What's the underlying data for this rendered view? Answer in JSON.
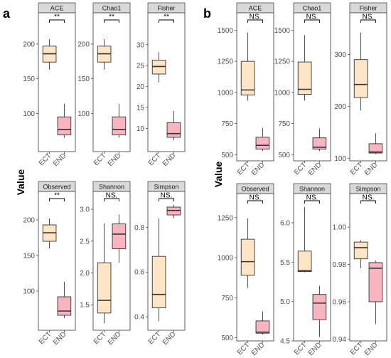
{
  "figure": {
    "panel_labels": [
      "a",
      "b"
    ],
    "y_axis_label": "Value"
  },
  "colors": {
    "ECT": "#FDE5C5",
    "END": "#F9B4C2",
    "strip": "#D9D9D9",
    "frame": "#4d4d4d",
    "median": "#333333"
  },
  "chart_data": [
    {
      "type": "box",
      "group": "a",
      "title": "ACE",
      "categories": [
        "ECT",
        "END"
      ],
      "ylim": [
        45,
        245
      ],
      "yticks": [
        100,
        150,
        200
      ],
      "significance": "**",
      "boxes": [
        {
          "name": "ECT",
          "min": 163,
          "q1": 174,
          "median": 186,
          "q3": 197,
          "max": 207
        },
        {
          "name": "END",
          "min": 65,
          "q1": 69,
          "median": 77,
          "q3": 95,
          "max": 114
        }
      ]
    },
    {
      "type": "box",
      "group": "a",
      "title": "Chao1",
      "categories": [
        "ECT",
        "END"
      ],
      "ylim": [
        45,
        245
      ],
      "yticks": [
        100,
        150,
        200
      ],
      "significance": "**",
      "boxes": [
        {
          "name": "ECT",
          "min": 163,
          "q1": 174,
          "median": 186,
          "q3": 197,
          "max": 207
        },
        {
          "name": "END",
          "min": 65,
          "q1": 69,
          "median": 77,
          "q3": 95,
          "max": 114
        }
      ]
    },
    {
      "type": "box",
      "group": "a",
      "title": "Fisher",
      "categories": [
        "ECT",
        "END"
      ],
      "ylim": [
        4.5,
        37.6
      ],
      "yticks": [
        10,
        15,
        20,
        25,
        30
      ],
      "significance": "**",
      "boxes": [
        {
          "name": "ECT",
          "min": 21,
          "q1": 23,
          "median": 24.8,
          "q3": 26.3,
          "max": 28.2
        },
        {
          "name": "END",
          "min": 7.2,
          "q1": 7.9,
          "median": 8.8,
          "q3": 11.4,
          "max": 14.2
        }
      ]
    },
    {
      "type": "box",
      "group": "a",
      "title": "Observed",
      "categories": [
        "ECT",
        "END"
      ],
      "ylim": [
        45,
        240
      ],
      "yticks": [
        100,
        150,
        200
      ],
      "significance": "**",
      "boxes": [
        {
          "name": "ECT",
          "min": 160,
          "q1": 170,
          "median": 182,
          "q3": 193,
          "max": 202
        },
        {
          "name": "END",
          "min": 62,
          "q1": 66,
          "median": 72,
          "q3": 92,
          "max": 113
        }
      ]
    },
    {
      "type": "box",
      "group": "a",
      "title": "Shannon",
      "categories": [
        "ECT",
        "END"
      ],
      "ylim": [
        1.1,
        3.28
      ],
      "yticks": [
        1.5,
        2.0,
        2.5,
        3.0
      ],
      "significance": "NS.",
      "boxes": [
        {
          "name": "ECT",
          "min": 1.21,
          "q1": 1.37,
          "median": 1.57,
          "q3": 2.16,
          "max": 2.78
        },
        {
          "name": "END",
          "min": 2.16,
          "q1": 2.38,
          "median": 2.61,
          "q3": 2.77,
          "max": 2.92
        }
      ]
    },
    {
      "type": "box",
      "group": "a",
      "title": "Simpson",
      "categories": [
        "ECT",
        "END"
      ],
      "ylim": [
        0.34,
        0.96
      ],
      "yticks": [
        0.4,
        0.6,
        0.8
      ],
      "significance": "NS.",
      "boxes": [
        {
          "name": "ECT",
          "min": 0.38,
          "q1": 0.44,
          "median": 0.5,
          "q3": 0.67,
          "max": 0.84
        },
        {
          "name": "END",
          "min": 0.84,
          "q1": 0.855,
          "median": 0.875,
          "q3": 0.89,
          "max": 0.9
        }
      ]
    },
    {
      "type": "box",
      "group": "b",
      "title": "ACE",
      "categories": [
        "ECT",
        "END"
      ],
      "ylim": [
        450,
        1640
      ],
      "yticks": [
        500,
        750,
        1000,
        1250,
        1500
      ],
      "significance": "NS.",
      "boxes": [
        {
          "name": "ECT",
          "min": 935,
          "q1": 980,
          "median": 1020,
          "q3": 1250,
          "max": 1480
        },
        {
          "name": "END",
          "min": 530,
          "q1": 545,
          "median": 575,
          "q3": 640,
          "max": 715
        }
      ]
    },
    {
      "type": "box",
      "group": "b",
      "title": "Chao1",
      "categories": [
        "ECT",
        "END"
      ],
      "ylim": [
        450,
        1640
      ],
      "yticks": [
        500,
        750,
        1000,
        1250,
        1500
      ],
      "significance": "NS.",
      "boxes": [
        {
          "name": "ECT",
          "min": 935,
          "q1": 985,
          "median": 1025,
          "q3": 1245,
          "max": 1460
        },
        {
          "name": "END",
          "min": 530,
          "q1": 545,
          "median": 560,
          "q3": 635,
          "max": 710
        }
      ]
    },
    {
      "type": "box",
      "group": "b",
      "title": "Fisher",
      "categories": [
        "ECT",
        "END"
      ],
      "ylim": [
        95,
        380
      ],
      "yticks": [
        100,
        200,
        300
      ],
      "significance": "NS.",
      "boxes": [
        {
          "name": "ECT",
          "min": 192,
          "q1": 217,
          "median": 242,
          "q3": 290,
          "max": 342
        },
        {
          "name": "END",
          "min": 108,
          "q1": 110,
          "median": 112,
          "q3": 128,
          "max": 148
        }
      ]
    },
    {
      "type": "box",
      "group": "b",
      "title": "Observed",
      "categories": [
        "ECT",
        "END"
      ],
      "ylim": [
        480,
        1400
      ],
      "yticks": [
        500,
        750,
        1000,
        1250
      ],
      "significance": "NS.",
      "boxes": [
        {
          "name": "ECT",
          "min": 810,
          "q1": 890,
          "median": 975,
          "q3": 1115,
          "max": 1245
        },
        {
          "name": "END",
          "min": 520,
          "q1": 528,
          "median": 535,
          "q3": 605,
          "max": 665
        }
      ]
    },
    {
      "type": "box",
      "group": "b",
      "title": "Shannon",
      "categories": [
        "ECT",
        "END"
      ],
      "ylim": [
        4.5,
        6.37
      ],
      "yticks": [
        4.5,
        5.0,
        5.5,
        6.0
      ],
      "significance": "NS.",
      "boxes": [
        {
          "name": "ECT",
          "min": 5.37,
          "q1": 5.38,
          "median": 5.39,
          "q3": 5.64,
          "max": 6.2
        },
        {
          "name": "END",
          "min": 4.55,
          "q1": 4.77,
          "median": 4.98,
          "q3": 5.09,
          "max": 5.2
        }
      ]
    },
    {
      "type": "box",
      "group": "b",
      "title": "Simpson",
      "categories": [
        "ECT",
        "END"
      ],
      "ylim": [
        0.939,
        1.018
      ],
      "yticks": [
        0.94,
        0.96,
        0.98,
        1.0
      ],
      "significance": "NS.",
      "boxes": [
        {
          "name": "ECT",
          "min": 0.978,
          "q1": 0.983,
          "median": 0.989,
          "q3": 0.992,
          "max": 0.993
        },
        {
          "name": "END",
          "min": 0.948,
          "q1": 0.96,
          "median": 0.978,
          "q3": 0.981,
          "max": 0.982
        }
      ]
    }
  ]
}
